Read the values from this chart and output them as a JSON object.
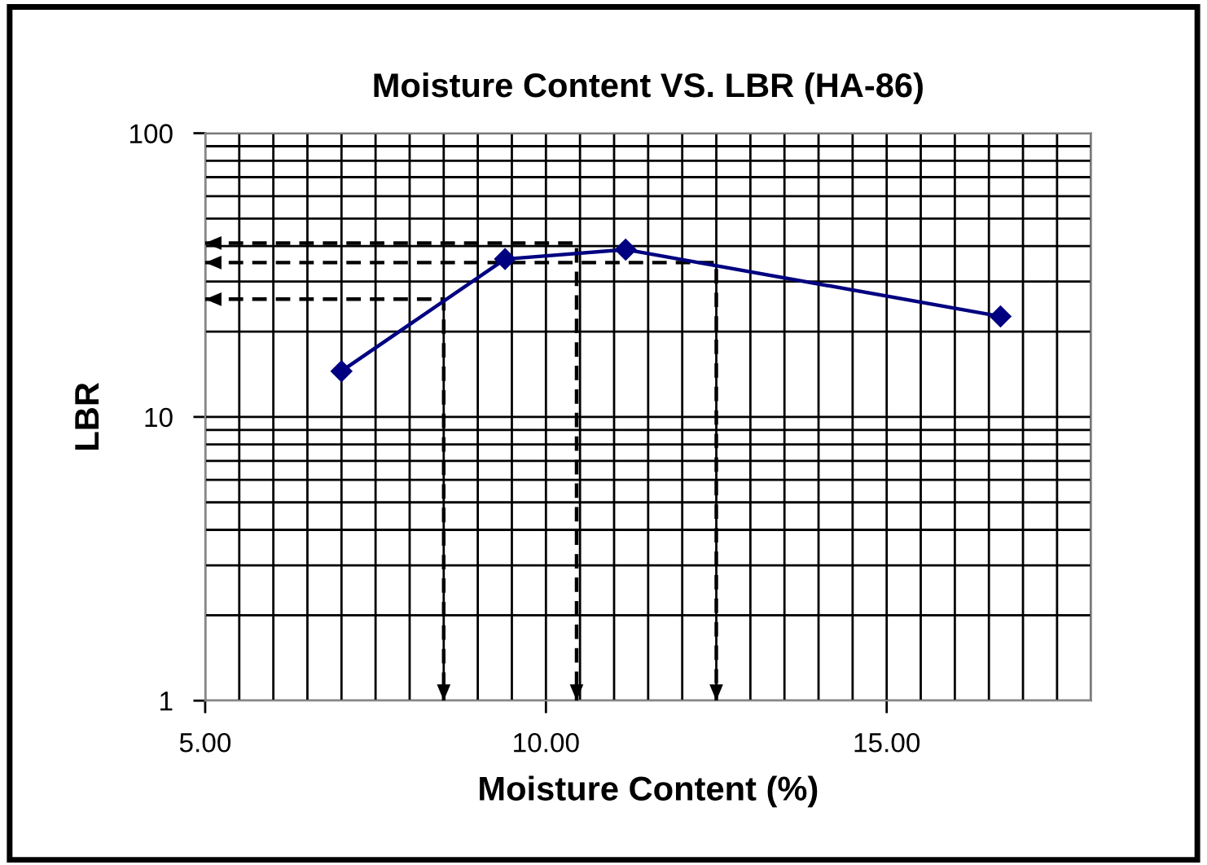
{
  "chart_data": {
    "type": "line",
    "title": "Moisture Content VS. LBR (HA-86)",
    "xlabel": "Moisture Content (%)",
    "ylabel": "LBR",
    "x": [
      7.0,
      9.4,
      11.17,
      16.67
    ],
    "series": [
      {
        "color": "#000080",
        "values": [
          14.5,
          36,
          38.9,
          22.6
        ]
      },
      {
        "type": "line",
        "x": [
          5,
          8.5,
          8.5
        ],
        "values": [
          26,
          26,
          1
        ],
        "color": "#000000",
        "line_style": "dashed",
        "marker": "none"
      },
      {
        "type": "line",
        "x": [
          5,
          10.45,
          10.45
        ],
        "values": [
          41,
          41,
          1
        ],
        "color": "#000000",
        "line_style": "dashed",
        "marker": "none"
      },
      {
        "type": "line",
        "x": [
          5,
          12.5,
          12.5
        ],
        "values": [
          35,
          35,
          1
        ],
        "color": "#000000",
        "line_style": "dashed",
        "marker": "none"
      }
    ],
    "marker": "diamond",
    "line_style": "solid",
    "log": "y",
    "grid": true,
    "legend": false,
    "xlim": [
      5,
      18
    ],
    "xticks": [
      {
        "value": 5,
        "label": "5.00"
      },
      {
        "value": 5.5,
        "label": null
      },
      {
        "value": 6,
        "label": null
      },
      {
        "value": 6.5,
        "label": null
      },
      {
        "value": 7,
        "label": null
      },
      {
        "value": 7.5,
        "label": null
      },
      {
        "value": 8,
        "label": null
      },
      {
        "value": 8.5,
        "label": null
      },
      {
        "value": 9,
        "label": null
      },
      {
        "value": 9.5,
        "label": null
      },
      {
        "value": 10,
        "label": "10.00"
      },
      {
        "value": 10.5,
        "label": null
      },
      {
        "value": 11,
        "label": null
      },
      {
        "value": 11.5,
        "label": null
      },
      {
        "value": 12,
        "label": null
      },
      {
        "value": 12.5,
        "label": null
      },
      {
        "value": 13,
        "label": null
      },
      {
        "value": 13.5,
        "label": null
      },
      {
        "value": 14,
        "label": null
      },
      {
        "value": 14.5,
        "label": null
      },
      {
        "value": 15,
        "label": "15.00"
      },
      {
        "value": 15.5,
        "label": null
      },
      {
        "value": 16,
        "label": null
      },
      {
        "value": 16.5,
        "label": null
      },
      {
        "value": 17,
        "label": null
      },
      {
        "value": 17.5,
        "label": null
      },
      {
        "value": 18,
        "label": null
      }
    ],
    "ylim": [
      1,
      100
    ],
    "yticks": [
      1,
      {
        "value": 2,
        "label": null
      },
      {
        "value": 3,
        "label": null
      },
      {
        "value": 4,
        "label": null
      },
      {
        "value": 5,
        "label": null
      },
      {
        "value": 6,
        "label": null
      },
      {
        "value": 7,
        "label": null
      },
      {
        "value": 8,
        "label": null
      },
      {
        "value": 9,
        "label": null
      },
      10,
      {
        "value": 20,
        "label": null
      },
      {
        "value": 30,
        "label": null
      },
      {
        "value": 40,
        "label": null
      },
      {
        "value": 50,
        "label": null
      },
      {
        "value": 60,
        "label": null
      },
      {
        "value": 70,
        "label": null
      },
      {
        "value": 80,
        "label": null
      },
      {
        "value": 90,
        "label": null
      },
      100
    ]
  }
}
